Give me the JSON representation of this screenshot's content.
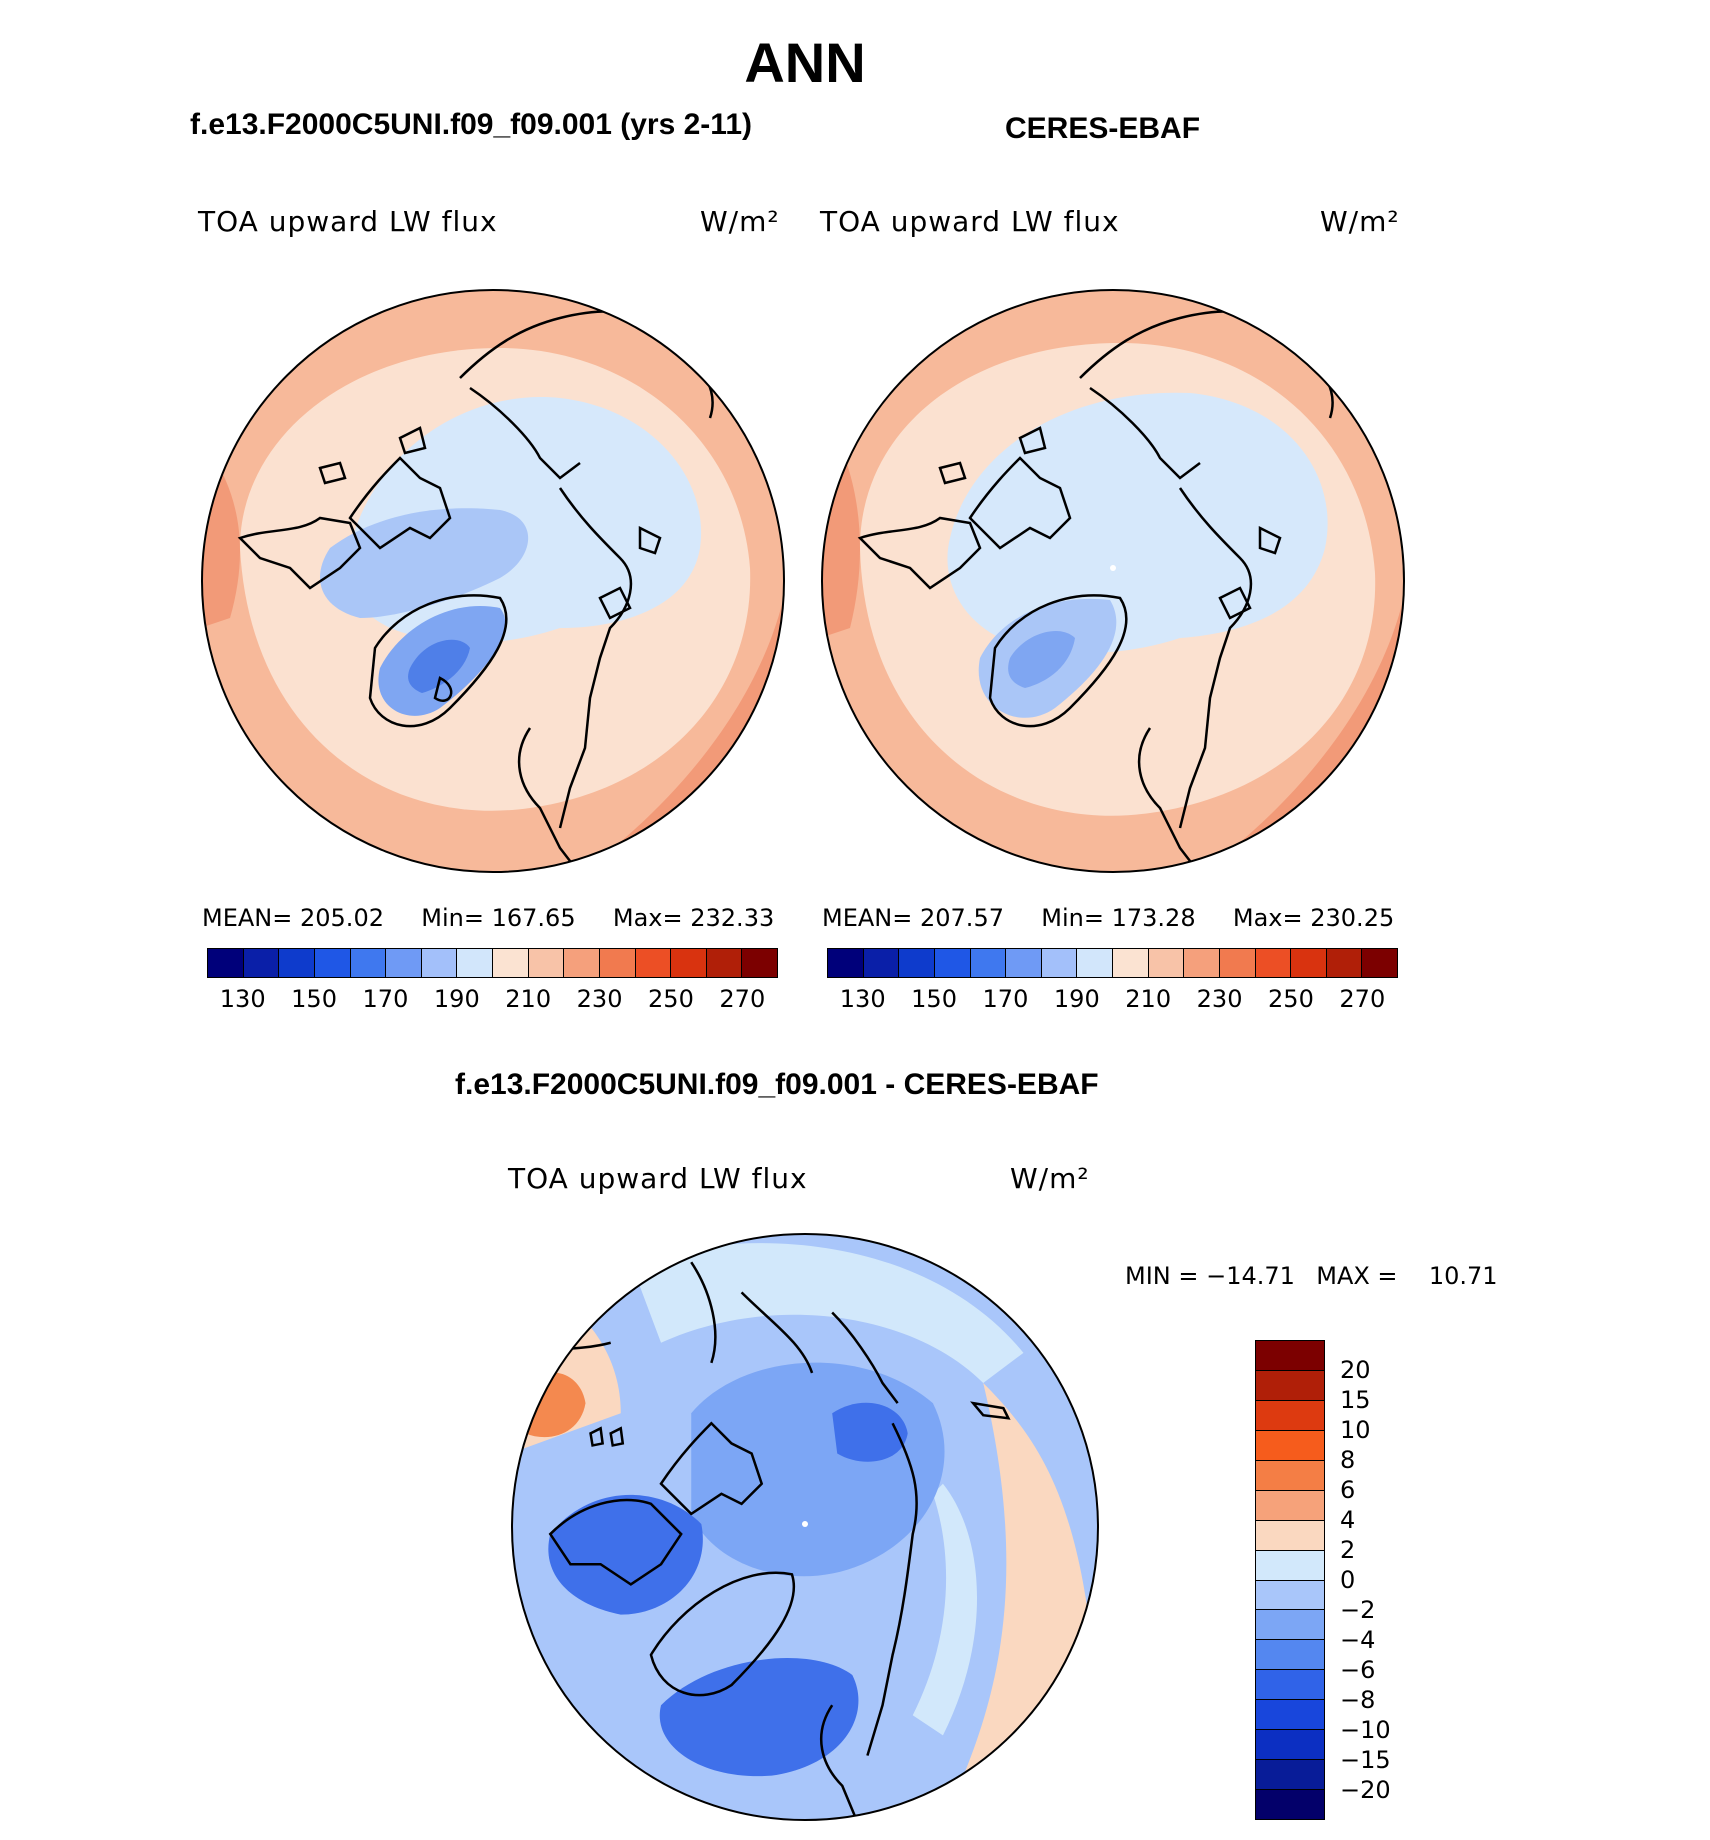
{
  "season": "ANN",
  "left_panel": {
    "case_title": "f.e13.F2000C5UNI.f09_f09.001 (yrs 2-11)",
    "variable": "TOA upward LW flux",
    "units": "W/m²",
    "mean_label": "MEAN=",
    "mean": "205.02",
    "min_label": "Min=",
    "min": "167.65",
    "max_label": "Max=",
    "max": "232.33"
  },
  "right_panel": {
    "case_title": "CERES-EBAF",
    "variable": "TOA upward LW flux",
    "units": "W/m²",
    "mean_label": "MEAN=",
    "mean": "207.57",
    "min_label": "Min=",
    "min": "173.28",
    "max_label": "Max=",
    "max": "230.25"
  },
  "diff_panel": {
    "case_title": "f.e13.F2000C5UNI.f09_f09.001 - CERES-EBAF",
    "variable": "TOA upward LW flux",
    "units": "W/m²",
    "min_label": "MIN =",
    "min": "−14.71",
    "max_label": "MAX =",
    "max": "10.71"
  },
  "abs_colorbar": {
    "colors": [
      "#00007a",
      "#0a1fa8",
      "#0e3bcc",
      "#1f57e6",
      "#3f78ef",
      "#6f9af5",
      "#a3c0fa",
      "#d2e6fb",
      "#fbe3d2",
      "#f8c3a8",
      "#f5a07c",
      "#f17a4f",
      "#ec4f25",
      "#d9330f",
      "#b01f08",
      "#7c0000"
    ],
    "tick_labels": [
      "130",
      "150",
      "170",
      "190",
      "210",
      "230",
      "250",
      "270"
    ]
  },
  "diff_colorbar": {
    "colors": [
      "#7c0000",
      "#b01f08",
      "#dd3a10",
      "#f65c1c",
      "#f47e45",
      "#f6a27a",
      "#fad8c0",
      "#d2e8fb",
      "#a9c6fa",
      "#7ca6f5",
      "#5487f0",
      "#3063e8",
      "#1846dc",
      "#0c2fc2",
      "#081c98",
      "#03006a"
    ],
    "tick_labels": [
      "20",
      "15",
      "10",
      "8",
      "6",
      "4",
      "2",
      "0",
      "−2",
      "−4",
      "−6",
      "−8",
      "−10",
      "−15",
      "−20"
    ]
  },
  "map_colors": {
    "outer": "#f7b99a",
    "outer_deep": "#f29a78",
    "mid": "#fbe1d0",
    "inner": "#d6e8fb",
    "inner_deep": "#aac6f7",
    "greenland": "#7fa6f2",
    "diff_base": "#a9c6fa",
    "diff_light": "#d2e8fb",
    "diff_mid": "#7ca6f5",
    "diff_deep": "#3f70ea",
    "diff_pos": "#fad8c0",
    "diff_pos_strong": "#f4894f"
  }
}
